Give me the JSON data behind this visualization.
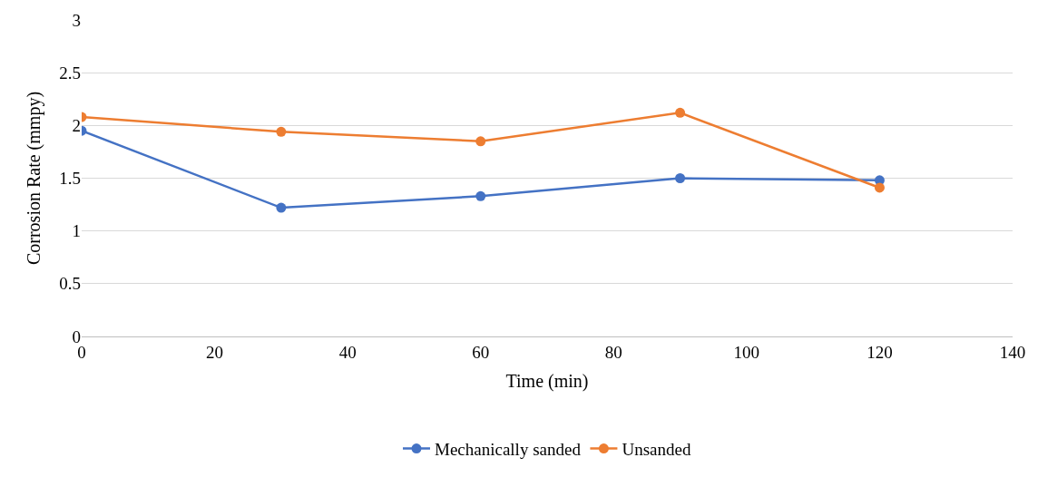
{
  "chart_data": {
    "type": "line",
    "xlabel": "Time (min)",
    "ylabel": "Corrosion Rate (mmpy)",
    "x": [
      0,
      30,
      60,
      90,
      120
    ],
    "series": [
      {
        "name": "Mechanically sanded",
        "color": "#4472c4",
        "values": [
          1.95,
          1.22,
          1.33,
          1.5,
          1.48
        ]
      },
      {
        "name": "Unsanded",
        "color": "#ed7d31",
        "values": [
          2.08,
          1.94,
          1.85,
          2.12,
          1.41
        ]
      }
    ],
    "xlim": [
      0,
      140
    ],
    "xticks": [
      0,
      20,
      40,
      60,
      80,
      100,
      120,
      140
    ],
    "ylim": [
      0,
      3
    ],
    "yticks": [
      0,
      0.5,
      1,
      1.5,
      2,
      2.5,
      3
    ],
    "grid": "y",
    "legend": "bottom",
    "marker": "circle",
    "line_style": "solid"
  }
}
